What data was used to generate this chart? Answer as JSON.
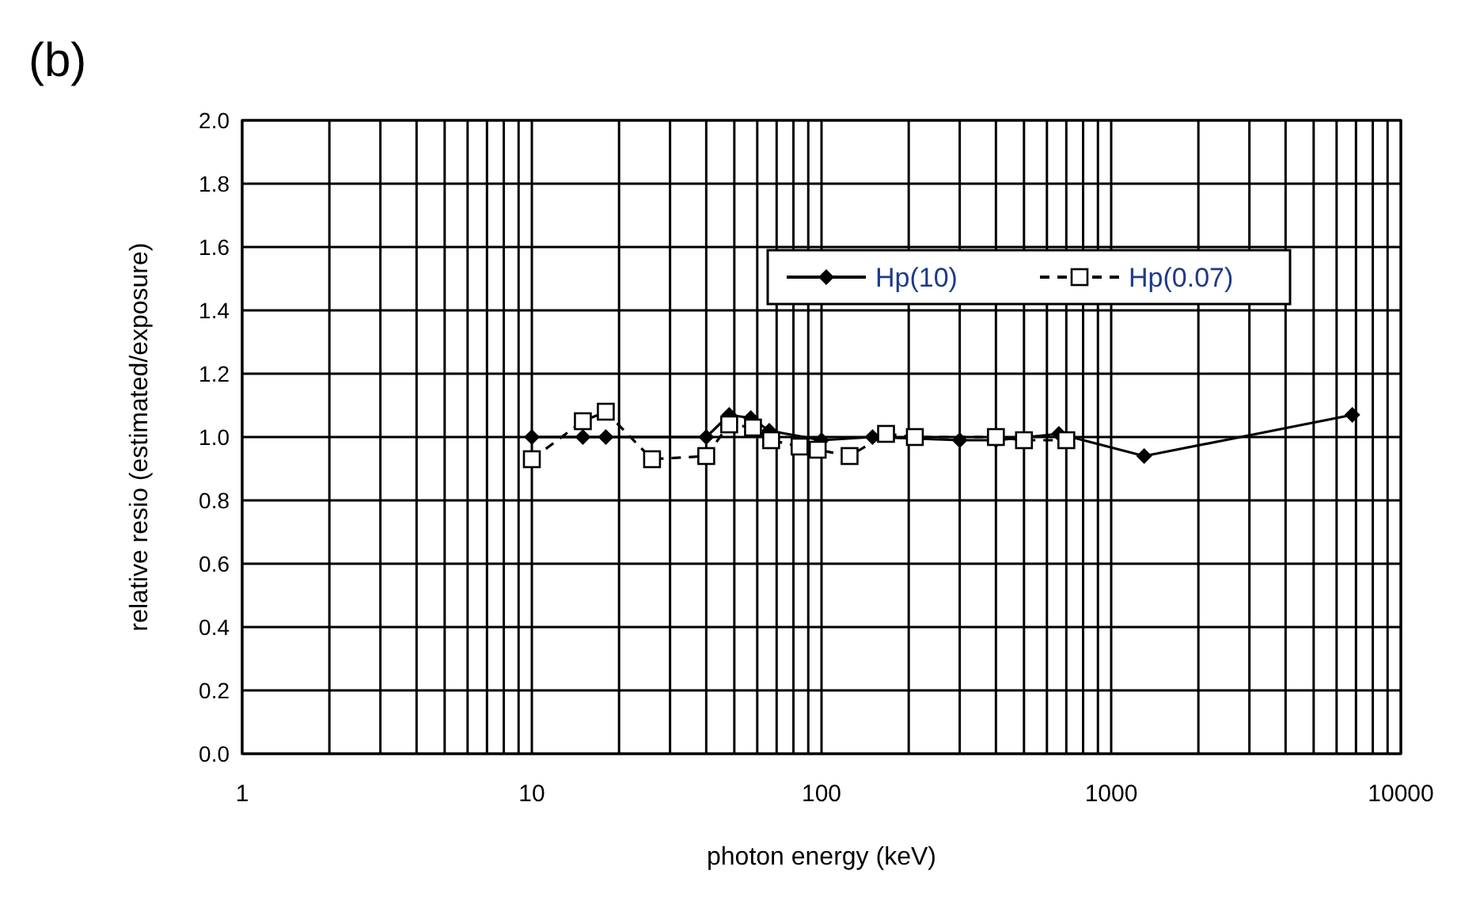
{
  "chart_data": {
    "type": "line",
    "title": "(b)",
    "xlabel": "photon energy  (keV)",
    "ylabel": "relative resio (estimated/exposure)",
    "log": "x",
    "grid": true,
    "legend": "top right",
    "xlim": [
      1,
      10000
    ],
    "xticks": [
      1,
      10,
      100,
      1000,
      10000
    ],
    "ylim": [
      0,
      2
    ],
    "yticks": [
      {
        "value": 0,
        "label": "0.0"
      },
      {
        "value": 0.2,
        "label": "0.2"
      },
      {
        "value": 0.4,
        "label": "0.4"
      },
      {
        "value": 0.6,
        "label": "0.6"
      },
      {
        "value": 0.8,
        "label": "0.8"
      },
      {
        "value": 1,
        "label": "1.0"
      },
      {
        "value": 1.2,
        "label": "1.2"
      },
      {
        "value": 1.4,
        "label": "1.4"
      },
      {
        "value": 1.6,
        "label": "1.6"
      },
      {
        "value": 1.8,
        "label": "1.8"
      },
      {
        "value": 2,
        "label": "2.0"
      }
    ],
    "series": [
      {
        "name": "Hp(10)",
        "color": "#000000",
        "marker": "diamond",
        "line_style": "solid",
        "x": [
          10,
          15,
          18,
          40,
          48,
          57,
          66,
          100,
          150,
          300,
          400,
          660,
          1300,
          6800
        ],
        "values": [
          1.0,
          1.0,
          1.0,
          1.0,
          1.07,
          1.06,
          1.02,
          0.99,
          1.0,
          0.99,
          0.99,
          1.01,
          0.94,
          1.07
        ]
      },
      {
        "name": "Hp(0.07)",
        "color": "#000000",
        "marker": "square",
        "line_style": "dashed",
        "x": [
          10,
          15,
          18,
          26,
          40,
          48,
          58,
          67,
          84,
          97,
          125,
          167,
          210,
          400,
          500,
          700
        ],
        "values": [
          0.93,
          1.05,
          1.08,
          0.93,
          0.94,
          1.04,
          1.03,
          0.99,
          0.97,
          0.96,
          0.94,
          1.01,
          1.0,
          1.0,
          0.99,
          0.99
        ]
      }
    ]
  }
}
